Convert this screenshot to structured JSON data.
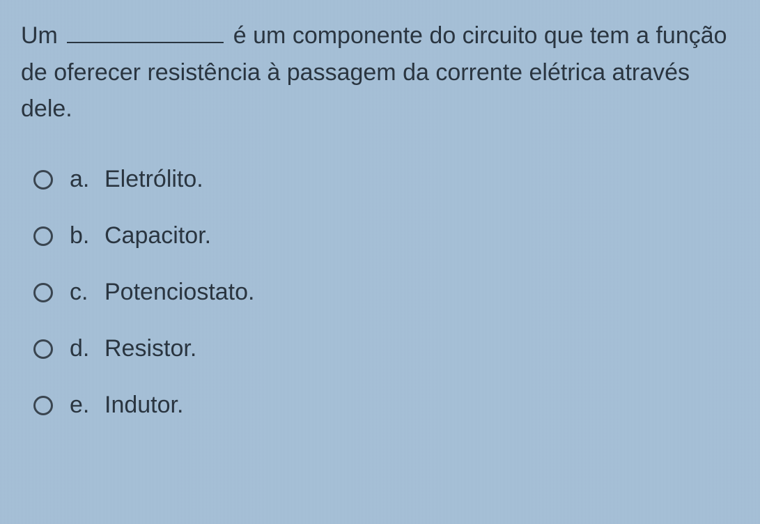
{
  "question": {
    "prefix": "Um",
    "suffix": "é um componente do circuito que tem a função de oferecer resistência à passagem da corrente elétrica através dele."
  },
  "options": [
    {
      "letter": "a.",
      "label": "Eletrólito."
    },
    {
      "letter": "b.",
      "label": "Capacitor."
    },
    {
      "letter": "c.",
      "label": "Potenciostato."
    },
    {
      "letter": "d.",
      "label": "Resistor."
    },
    {
      "letter": "e.",
      "label": "Indutor."
    }
  ],
  "colors": {
    "background": "#a8c2d9",
    "text": "#2a3540",
    "radio_border": "#3a4550"
  },
  "typography": {
    "font_family": "Segoe UI",
    "question_fontsize": 34,
    "option_fontsize": 34
  }
}
